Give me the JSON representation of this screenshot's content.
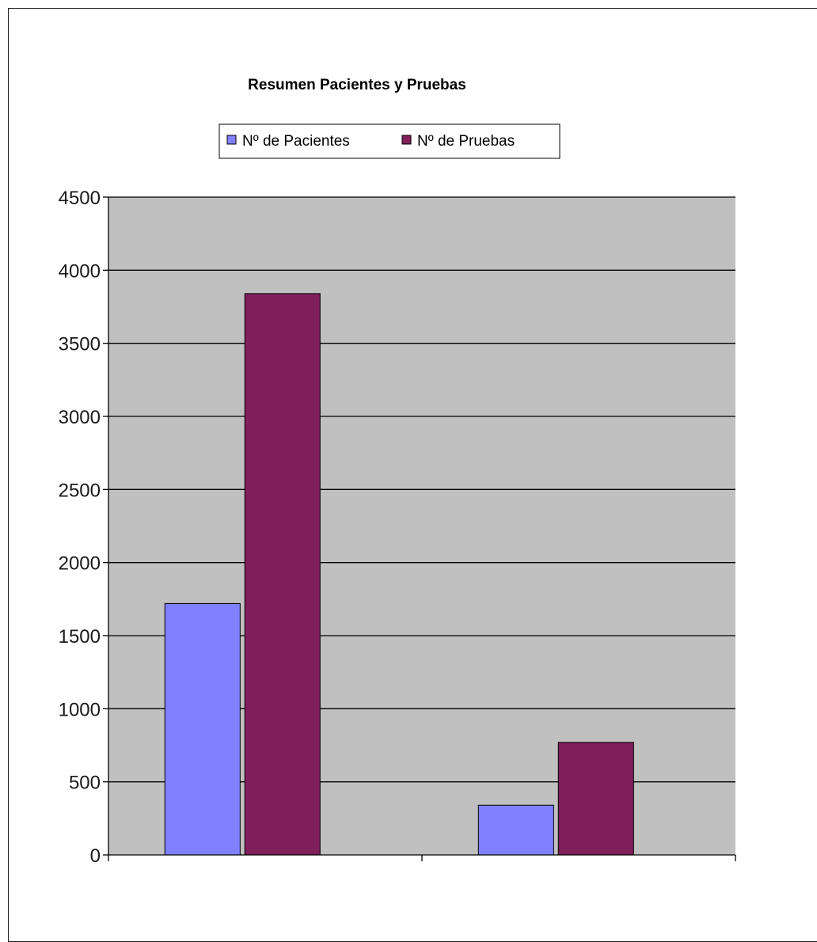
{
  "chart_data": {
    "type": "bar",
    "title": "Resumen Pacientes y Pruebas",
    "xlabel": "",
    "ylabel": "",
    "categories": [
      "",
      ""
    ],
    "series": [
      {
        "name": "Nº de Pacientes",
        "values": [
          1720,
          340
        ],
        "color": "#8080ff"
      },
      {
        "name": "Nº de Pruebas",
        "values": [
          3840,
          770
        ],
        "color": "#7f1f5c"
      }
    ],
    "ylim": [
      0,
      4500
    ],
    "yticks": [
      "0",
      "500",
      "1000",
      "1500",
      "2000",
      "2500",
      "3000",
      "3500",
      "4000",
      "4500"
    ],
    "grid": true,
    "legend_position": "top",
    "plot_background": "#c0c0c0",
    "gridline_color": "#000000"
  }
}
